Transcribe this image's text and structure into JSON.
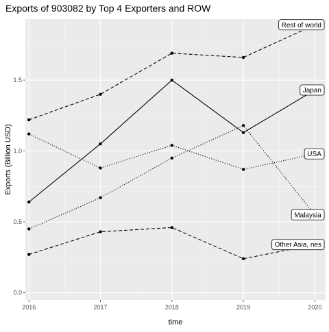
{
  "chart_data": {
    "type": "line",
    "title": "Exports of 903082 by Top 4 Exporters and ROW",
    "xlabel": "time",
    "ylabel": "Exports (Billion USD)",
    "x": [
      2016,
      2017,
      2018,
      2019,
      2020
    ],
    "x_ticks": [
      "2016",
      "2017",
      "2018",
      "2019",
      "2020"
    ],
    "y_ticks": [
      "0.0",
      "0.5",
      "1.0",
      "1.5"
    ],
    "xlim": [
      2015.95,
      2020.15
    ],
    "ylim": [
      -0.05,
      1.93
    ],
    "grid": true,
    "legend": "none",
    "colors": {
      "panel_background": "#ebebeb",
      "grid_major": "#ffffff",
      "grid_minor": "#f5f5f5",
      "series_line": "#000000",
      "axis_text": "#4d4d4d"
    },
    "series": [
      {
        "name": "Rest of world",
        "dash": "dashed",
        "values": [
          1.22,
          1.4,
          1.69,
          1.66,
          1.89
        ],
        "label_x": 2020
      },
      {
        "name": "Japan",
        "dash": "solid",
        "values": [
          0.64,
          1.05,
          1.5,
          1.13,
          1.43
        ],
        "label_x": 2020
      },
      {
        "name": "USA",
        "dash": "dotted",
        "values": [
          1.12,
          0.88,
          1.04,
          0.87,
          0.98
        ],
        "label_x": 2020
      },
      {
        "name": "Malaysia",
        "dash": "dotted",
        "values": [
          0.45,
          0.67,
          0.95,
          1.18,
          0.55
        ],
        "label_x": 2020
      },
      {
        "name": "Other Asia, nes",
        "dash": "dashed",
        "values": [
          0.27,
          0.43,
          0.46,
          0.24,
          0.34
        ],
        "label_x": 2020
      }
    ]
  }
}
